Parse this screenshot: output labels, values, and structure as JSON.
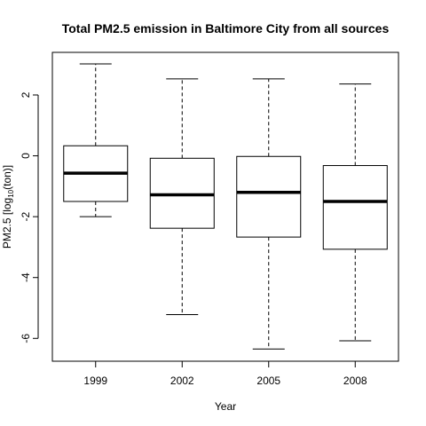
{
  "chart_data": {
    "type": "box",
    "title": "Total PM2.5 emission in Baltimore City from all sources",
    "xlabel": "Year",
    "ylabel": {
      "prefix": "PM2.5 [log",
      "subscript": "10",
      "suffix": "(ton)]"
    },
    "categories": [
      "1999",
      "2002",
      "2005",
      "2008"
    ],
    "yticks": [
      -6,
      -4,
      -2,
      0,
      2
    ],
    "ylim": [
      -6.75,
      3.4
    ],
    "boxes": [
      {
        "category": "1999",
        "min": -2.0,
        "q1": -1.5,
        "median": -0.57,
        "q3": 0.33,
        "max": 3.02
      },
      {
        "category": "2002",
        "min": -5.22,
        "q1": -2.38,
        "median": -1.28,
        "q3": -0.08,
        "max": 2.53
      },
      {
        "category": "2005",
        "min": -6.35,
        "q1": -2.67,
        "median": -1.2,
        "q3": -0.02,
        "max": 2.53
      },
      {
        "category": "2008",
        "min": -6.08,
        "q1": -3.07,
        "median": -1.5,
        "q3": -0.32,
        "max": 2.36
      }
    ],
    "box_color": "#ffffff",
    "line_color": "#000000"
  }
}
